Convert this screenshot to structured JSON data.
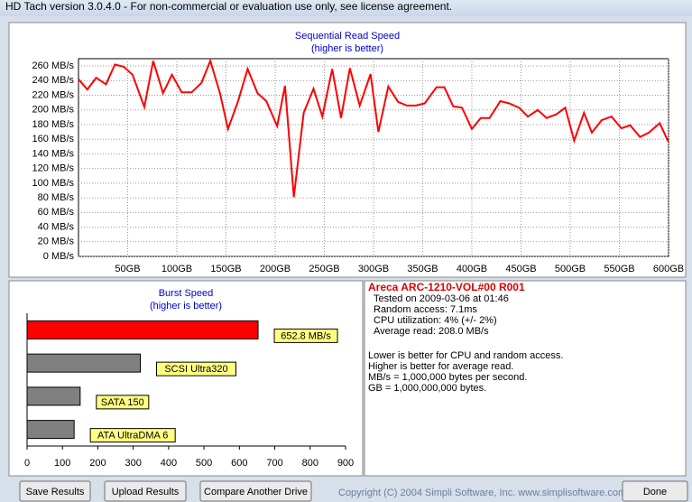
{
  "window": {
    "title": "HD Tach version 3.0.4.0  - For non-commercial or evaluation use only, see license agreement."
  },
  "chart_data": [
    {
      "type": "line",
      "title": "Sequential Read Speed",
      "subtitle": "(higher is better)",
      "color": "#ff0000",
      "x": [
        0,
        9,
        18,
        28,
        37,
        46,
        55,
        67,
        76,
        86,
        95,
        105,
        115,
        125,
        134,
        144,
        152,
        162,
        172,
        182,
        191,
        202,
        210,
        219,
        229,
        239,
        248,
        258,
        267,
        276,
        286,
        297,
        305,
        315,
        325,
        334,
        343,
        352,
        364,
        372,
        381,
        390,
        400,
        409,
        418,
        429,
        438,
        448,
        457,
        467,
        476,
        486,
        495,
        504,
        514,
        522,
        532,
        542,
        552,
        561,
        571,
        580,
        591,
        600
      ],
      "values": [
        242,
        228,
        244,
        235,
        262,
        259,
        248,
        204,
        267,
        223,
        248,
        224,
        224,
        237,
        267,
        222,
        174,
        211,
        256,
        223,
        212,
        178,
        233,
        81,
        196,
        229,
        191,
        256,
        189,
        257,
        206,
        249,
        170,
        232,
        211,
        206,
        206,
        209,
        231,
        231,
        205,
        203,
        174,
        189,
        189,
        212,
        209,
        203,
        191,
        200,
        189,
        194,
        203,
        158,
        196,
        169,
        186,
        191,
        175,
        179,
        163,
        169,
        182,
        156
      ],
      "xlim": [
        0,
        600
      ],
      "ylim": [
        0,
        270
      ],
      "grid": true,
      "xticks": [
        {
          "value": 50,
          "label": "50GB"
        },
        {
          "value": 100,
          "label": "100GB"
        },
        {
          "value": 150,
          "label": "150GB"
        },
        {
          "value": 200,
          "label": "200GB"
        },
        {
          "value": 250,
          "label": "250GB"
        },
        {
          "value": 300,
          "label": "300GB"
        },
        {
          "value": 350,
          "label": "350GB"
        },
        {
          "value": 400,
          "label": "400GB"
        },
        {
          "value": 450,
          "label": "450GB"
        },
        {
          "value": 500,
          "label": "500GB"
        },
        {
          "value": 550,
          "label": "550GB"
        },
        {
          "value": 600,
          "label": "600GB"
        }
      ],
      "yticks": [
        {
          "value": 0,
          "label": "0 MB/s"
        },
        {
          "value": 20,
          "label": "20 MB/s"
        },
        {
          "value": 40,
          "label": "40 MB/s"
        },
        {
          "value": 60,
          "label": "60 MB/s"
        },
        {
          "value": 80,
          "label": "80 MB/s"
        },
        {
          "value": 100,
          "label": "100 MB/s"
        },
        {
          "value": 120,
          "label": "120 MB/s"
        },
        {
          "value": 140,
          "label": "140 MB/s"
        },
        {
          "value": 160,
          "label": "160 MB/s"
        },
        {
          "value": 180,
          "label": "180 MB/s"
        },
        {
          "value": 200,
          "label": "200 MB/s"
        },
        {
          "value": 220,
          "label": "220 MB/s"
        },
        {
          "value": 240,
          "label": "240 MB/s"
        },
        {
          "value": 260,
          "label": "260 MB/s"
        }
      ]
    },
    {
      "type": "bar",
      "title": "Burst Speed",
      "subtitle": "(higher is better)",
      "categories": [
        null,
        "SCSI Ultra320",
        "SATA 150",
        "ATA UltraDMA 6"
      ],
      "values": [
        652.8,
        320,
        150,
        133
      ],
      "value_labels": [
        "652.8 MB/s",
        null,
        null,
        null
      ],
      "colors": [
        "#ff0000",
        "#808080",
        "#808080",
        "#808080"
      ],
      "xlim": [
        0,
        900
      ],
      "xticks": [
        0,
        100,
        200,
        300,
        400,
        500,
        600,
        700,
        800,
        900
      ],
      "grid": false
    }
  ],
  "info": {
    "drive": "Areca ARC-1210-VOL#00 R001",
    "lines": [
      "Tested on 2009-03-06 at 01:46",
      "Random access: 7.1ms",
      "CPU utilization: 4% (+/- 2%)",
      "Average read: 208.0 MB/s"
    ],
    "notes": [
      "Lower is better for CPU and random access.",
      "Higher is better for average read.",
      "MB/s = 1,000,000 bytes per second.",
      "GB = 1,000,000,000 bytes."
    ]
  },
  "buttons": [
    "Save Results",
    "Upload Results",
    "Compare Another Drive",
    "Done"
  ],
  "copyright": "Copyright (C) 2004 Simpli Software, Inc. www.simplisoftware.com"
}
